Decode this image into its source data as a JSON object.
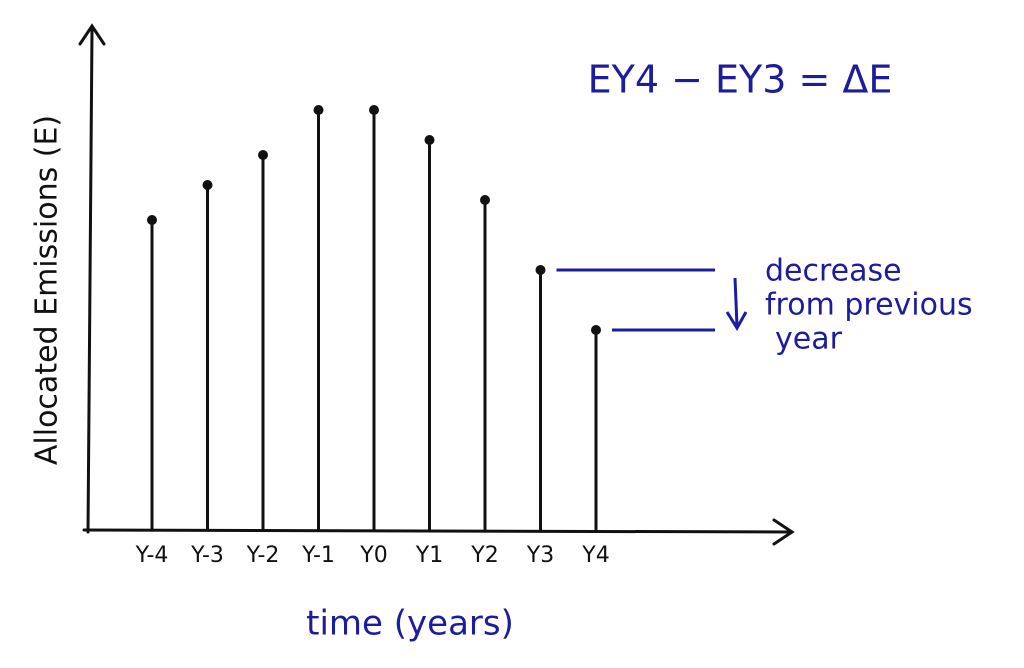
{
  "chart_data": {
    "type": "stem",
    "y_label": "Allocated Emissions (E)",
    "x_label": "time (years)",
    "categories": [
      "Y-4",
      "Y-3",
      "Y-2",
      "Y-1",
      "Y0",
      "Y1",
      "Y2",
      "Y3",
      "Y4"
    ],
    "values": [
      62,
      69,
      75,
      84,
      84,
      78,
      66,
      52,
      40
    ],
    "ylim": [
      0,
      100
    ],
    "color": "#111111",
    "annotation_color": "#1c1c9c",
    "equation": "EY4 − EY3 = ΔE",
    "annotation": [
      "decrease",
      "from previous",
      "year"
    ]
  }
}
